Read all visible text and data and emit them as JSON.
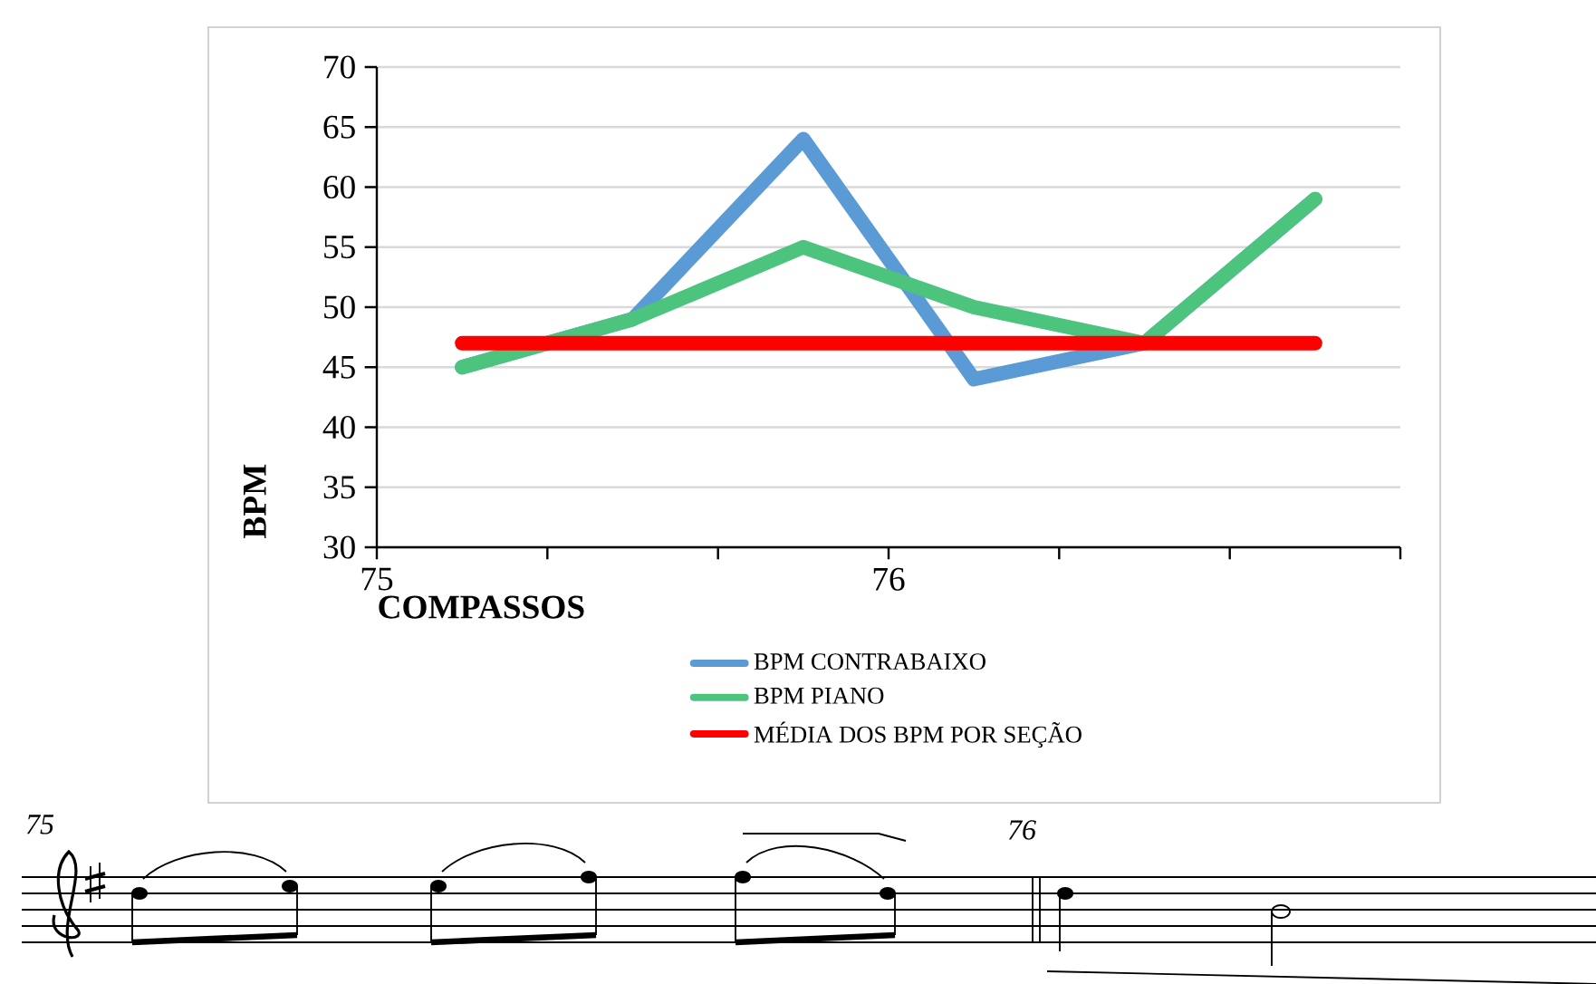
{
  "chart_data": {
    "type": "line",
    "xlabel": "COMPASSOS",
    "ylabel": "BPM",
    "x": [
      75.1667,
      75.5,
      75.8333,
      76.1667,
      76.5,
      76.8333
    ],
    "xlim": [
      75,
      77
    ],
    "xticks": [
      {
        "value": 75,
        "label": "75"
      },
      {
        "value": 75.3333,
        "label": null
      },
      {
        "value": 75.6667,
        "label": null
      },
      {
        "value": 76,
        "label": "76"
      },
      {
        "value": 76.3333,
        "label": null
      },
      {
        "value": 76.6667,
        "label": null
      },
      {
        "value": 77,
        "label": null
      }
    ],
    "ylim": [
      30,
      70
    ],
    "yticks": [
      30,
      35,
      40,
      45,
      50,
      55,
      60,
      65,
      70
    ],
    "grid": "y",
    "legend": "bottom",
    "marker": "none",
    "line_style": "solid",
    "series": [
      {
        "name": "BPM CONTRABAIXO",
        "color": "#5b9bd5",
        "values": [
          45,
          49,
          64,
          44,
          47,
          59
        ]
      },
      {
        "name": "BPM PIANO",
        "color": "#4cc47e",
        "values": [
          45,
          49,
          55,
          50,
          47,
          59
        ]
      },
      {
        "name": "MÉDIA DOS BPM POR SEÇÃO",
        "color": "#ff0000",
        "values": [
          47,
          47,
          47,
          47,
          47,
          47
        ]
      }
    ],
    "annotations": [
      "75",
      "76"
    ]
  }
}
